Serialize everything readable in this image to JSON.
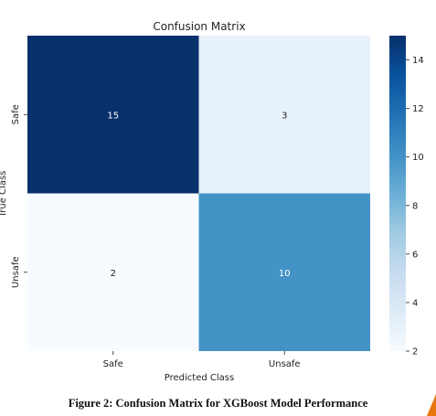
{
  "chart_data": {
    "type": "heatmap",
    "title": "Confusion Matrix",
    "xlabel": "Predicted Class",
    "ylabel": "True Class",
    "x_categories": [
      "Safe",
      "Unsafe"
    ],
    "y_categories": [
      "Safe",
      "Unsafe"
    ],
    "values": [
      [
        15,
        3
      ],
      [
        2,
        10
      ]
    ],
    "colormap": "Blues",
    "colors": {
      "low": "#f7fbff",
      "mid": "#6baed6",
      "high": "#08306b"
    },
    "colorbar": {
      "range": [
        2,
        15
      ],
      "ticks": [
        2,
        4,
        6,
        8,
        10,
        12,
        14
      ]
    }
  },
  "caption": "Figure 2: Confusion Matrix for XGBoost Model Performance"
}
